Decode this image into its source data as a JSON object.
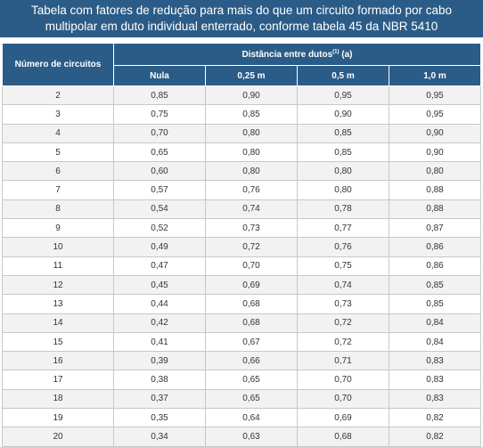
{
  "title": {
    "line1": "Tabela com fatores de redução para mais do que um circuito formado por cabo",
    "line2": "multipolar em duto individual enterrado, conforme tabela 45 da NBR 5410"
  },
  "table": {
    "header_circuits": "Número de circuitos",
    "header_distance_prefix": "Distância entre dutos",
    "header_distance_sup": "(1)",
    "header_distance_suffix": " (a)",
    "columns": [
      "Nula",
      "0,25 m",
      "0,5 m",
      "1,0 m"
    ],
    "rows": [
      [
        "2",
        "0,85",
        "0,90",
        "0,95",
        "0,95"
      ],
      [
        "3",
        "0,75",
        "0,85",
        "0,90",
        "0,95"
      ],
      [
        "4",
        "0,70",
        "0,80",
        "0,85",
        "0,90"
      ],
      [
        "5",
        "0,65",
        "0,80",
        "0,85",
        "0,90"
      ],
      [
        "6",
        "0,60",
        "0,80",
        "0,80",
        "0,80"
      ],
      [
        "7",
        "0,57",
        "0,76",
        "0,80",
        "0,88"
      ],
      [
        "8",
        "0,54",
        "0,74",
        "0,78",
        "0,88"
      ],
      [
        "9",
        "0,52",
        "0,73",
        "0,77",
        "0,87"
      ],
      [
        "10",
        "0,49",
        "0,72",
        "0,76",
        "0,86"
      ],
      [
        "11",
        "0,47",
        "0,70",
        "0,75",
        "0,86"
      ],
      [
        "12",
        "0,45",
        "0,69",
        "0,74",
        "0,85"
      ],
      [
        "13",
        "0,44",
        "0,68",
        "0,73",
        "0,85"
      ],
      [
        "14",
        "0,42",
        "0,68",
        "0,72",
        "0,84"
      ],
      [
        "15",
        "0,41",
        "0,67",
        "0,72",
        "0,84"
      ],
      [
        "16",
        "0,39",
        "0,66",
        "0,71",
        "0,83"
      ],
      [
        "17",
        "0,38",
        "0,65",
        "0,70",
        "0,83"
      ],
      [
        "18",
        "0,37",
        "0,65",
        "0,70",
        "0,83"
      ],
      [
        "19",
        "0,35",
        "0,64",
        "0,69",
        "0,82"
      ],
      [
        "20",
        "0,34",
        "0,63",
        "0,68",
        "0,82"
      ]
    ]
  }
}
